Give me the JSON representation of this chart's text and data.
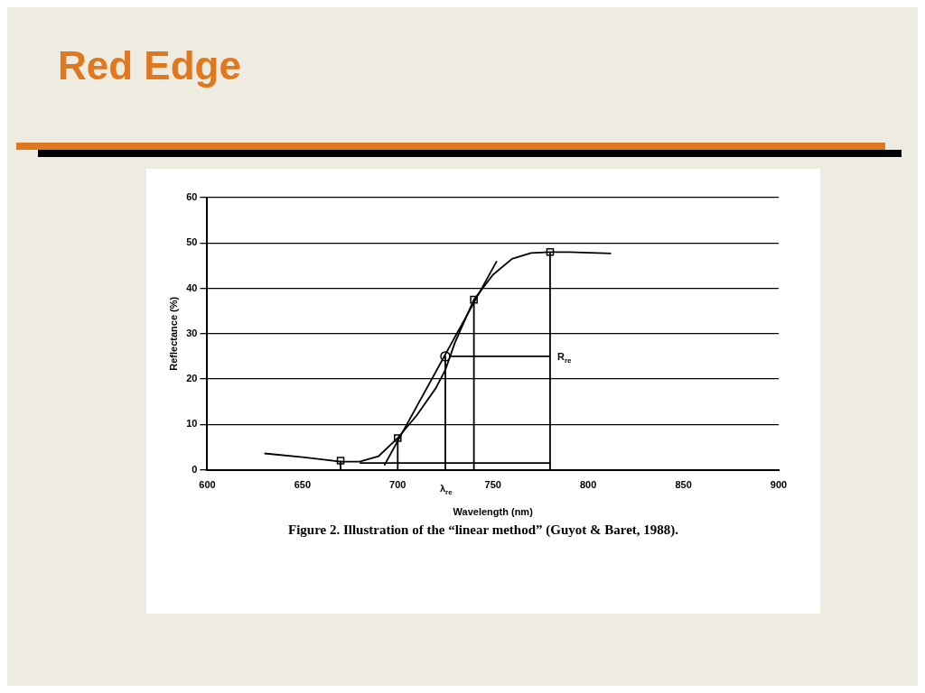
{
  "chart_data": {
    "type": "line",
    "title": "Red Edge",
    "xlabel": "Wavelength (nm)",
    "ylabel": "Reflectance (%)",
    "xlim": [
      600,
      900
    ],
    "ylim": [
      0,
      60
    ],
    "xticks": [
      600,
      650,
      700,
      750,
      800,
      850,
      900
    ],
    "yticks": [
      0,
      10,
      20,
      30,
      40,
      50,
      60
    ],
    "grid": "y",
    "legend": false,
    "annotations": [
      {
        "text": "R$_{re}$",
        "x": 780,
        "y": 25
      },
      {
        "text": "λ$_{re}$",
        "x": 725,
        "y": 0
      },
      "Figure 2. Illustration of the “linear method” (Guyot & Baret, 1988)."
    ],
    "series": [
      {
        "type": "line",
        "color": "#000000",
        "marker": "none",
        "x": [
          630,
          650,
          670,
          680,
          690,
          700,
          710,
          720,
          725,
          730,
          740,
          750,
          760,
          770,
          780,
          790,
          812
        ],
        "values": [
          3.6,
          2.8,
          1.8,
          1.8,
          3,
          7,
          12,
          18,
          22,
          28,
          37.5,
          43,
          46.5,
          47.8,
          48,
          48,
          47.7
        ]
      },
      {
        "type": "line",
        "color": "#000000",
        "marker": "none",
        "x": [
          693,
          752
        ],
        "values": [
          1,
          46
        ]
      },
      {
        "type": "line",
        "color": "#000000",
        "marker": "none",
        "x": [
          680,
          780
        ],
        "values": [
          1.5,
          1.5
        ]
      },
      {
        "type": "line",
        "color": "#000000",
        "marker": "none",
        "x": [
          670,
          670
        ],
        "values": [
          0,
          2
        ]
      },
      {
        "type": "line",
        "color": "#000000",
        "marker": "none",
        "x": [
          700,
          700
        ],
        "values": [
          0,
          7
        ]
      },
      {
        "type": "line",
        "color": "#000000",
        "marker": "none",
        "x": [
          740,
          740
        ],
        "values": [
          0,
          37.5
        ]
      },
      {
        "type": "line",
        "color": "#000000",
        "marker": "none",
        "x": [
          780,
          780
        ],
        "values": [
          0,
          48
        ]
      },
      {
        "type": "line",
        "color": "#000000",
        "marker": "none",
        "x": [
          780,
          727
        ],
        "values": [
          25,
          25
        ]
      },
      {
        "type": "line",
        "color": "#000000",
        "marker": "none",
        "x": [
          725,
          725
        ],
        "values": [
          25,
          0
        ]
      },
      {
        "type": "scatter",
        "color": "#000000",
        "marker": "square",
        "x": [
          670,
          700,
          740,
          780
        ],
        "values": [
          2,
          7,
          37.5,
          48
        ]
      },
      {
        "type": "scatter",
        "color": "#000000",
        "marker": "circle",
        "x": [
          725
        ],
        "values": [
          25
        ]
      }
    ]
  }
}
